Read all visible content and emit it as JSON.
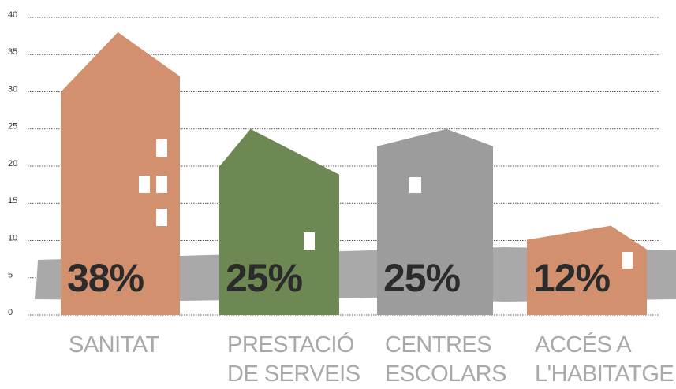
{
  "chart_data": {
    "type": "bar",
    "categories": [
      "SANITAT",
      "PRESTACIÓ\nDE SERVEIS",
      "CENTRES\nESCOLARS",
      "ACCÉS A\nL'HABITATGE"
    ],
    "values": [
      38,
      25,
      25,
      12
    ],
    "value_labels": [
      "38%",
      "25%",
      "25%",
      "12%"
    ],
    "colors": [
      "#d3906f",
      "#6e8853",
      "#9c9c9c",
      "#d3906f"
    ],
    "ylim": [
      0,
      40
    ],
    "yticks": [
      0,
      5,
      10,
      15,
      20,
      25,
      30,
      35,
      40
    ],
    "grid": true
  }
}
